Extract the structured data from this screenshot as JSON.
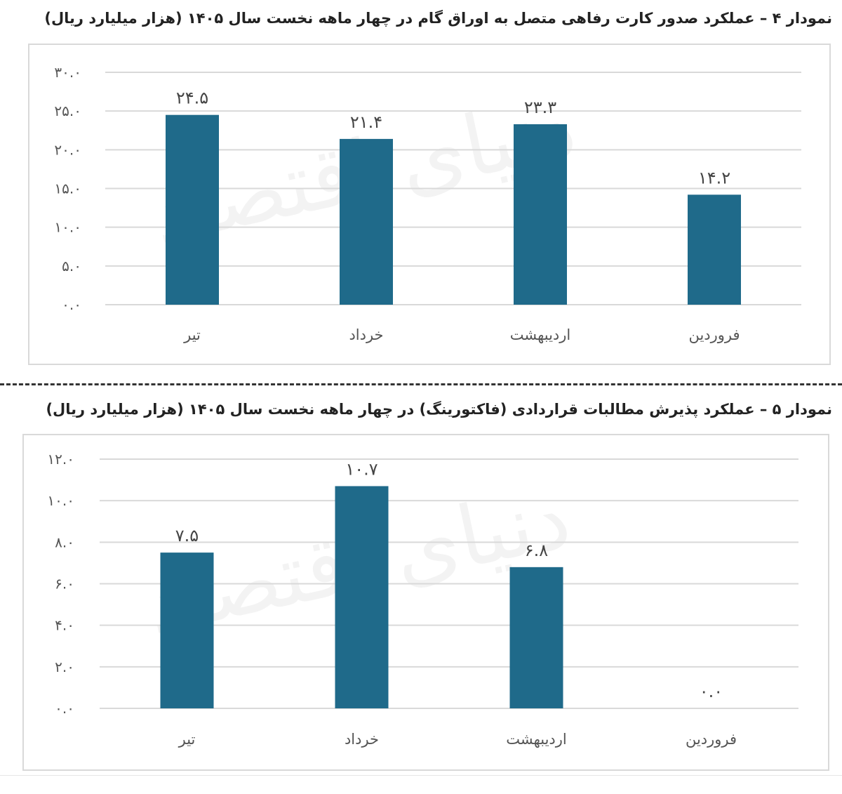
{
  "watermark": "دنیای اقتصاد",
  "chart_data": [
    {
      "type": "bar",
      "title": "نمودار ۴ – عملکرد صدور کارت رفاهی متصل به اوراق گام در چهار ماهه نخست سال ۱۴۰۵ (هزار میلیارد ریال)",
      "categories": [
        "فروردین",
        "اردیبهشت",
        "خرداد",
        "تیر"
      ],
      "values": [
        14.2,
        23.3,
        21.4,
        24.5
      ],
      "data_labels": [
        "۱۴.۲",
        "۲۳.۳",
        "۲۱.۴",
        "۲۴.۵"
      ],
      "yticks": [
        "۰.۰",
        "۵.۰",
        "۱۰.۰",
        "۱۵.۰",
        "۲۰.۰",
        "۲۵.۰",
        "۳۰.۰"
      ],
      "ylim": [
        0,
        30
      ],
      "grid": true,
      "bar_color": "#1f6a8a"
    },
    {
      "type": "bar",
      "title": "نمودار ۵ – عملکرد پذیرش مطالبات قراردادی (فاکتورینگ) در چهار ماهه نخست سال ۱۴۰۵ (هزار میلیارد ریال)",
      "categories": [
        "فروردین",
        "اردیبهشت",
        "خرداد",
        "تیر"
      ],
      "values": [
        0.0,
        6.8,
        10.7,
        7.5
      ],
      "data_labels": [
        "۰.۰",
        "۶.۸",
        "۱۰.۷",
        "۷.۵"
      ],
      "yticks": [
        "۰.۰",
        "۲.۰",
        "۴.۰",
        "۶.۰",
        "۸.۰",
        "۱۰.۰",
        "۱۲.۰"
      ],
      "ylim": [
        0,
        12
      ],
      "grid": true,
      "bar_color": "#1f6a8a"
    }
  ]
}
